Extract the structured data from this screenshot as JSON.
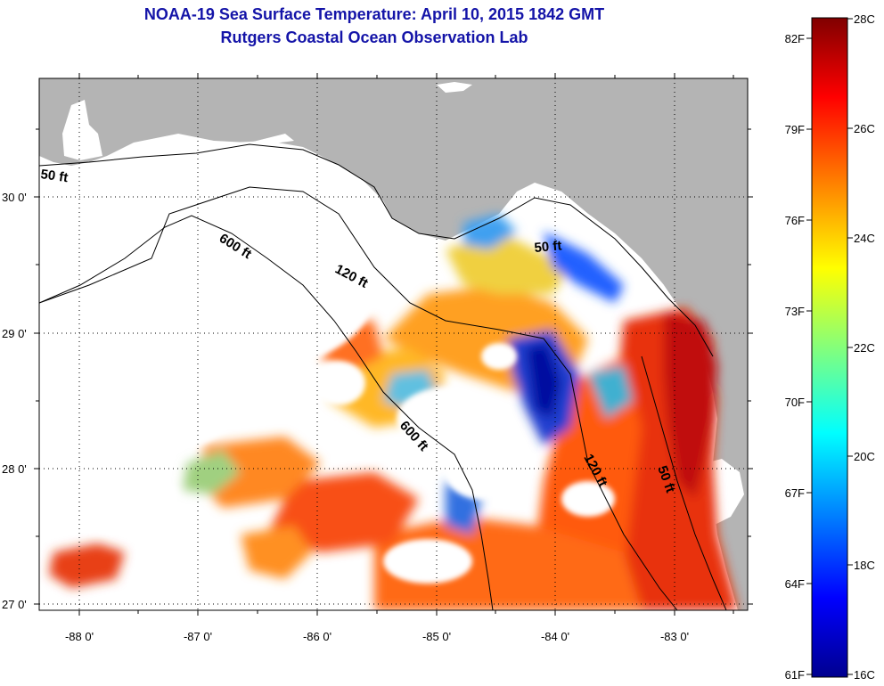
{
  "title": "NOAA-19 Sea Surface Temperature:  April 10, 2015 1842 GMT",
  "subtitle": "Rutgers Coastal Ocean Observation Lab",
  "map": {
    "x_ticks": [
      "-88 0'",
      "-87 0'",
      "-86 0'",
      "-85 0'",
      "-84 0'",
      "-83 0'"
    ],
    "y_ticks": [
      "30 0'",
      "29 0'",
      "28 0'",
      "27 0'"
    ],
    "contour_labels": [
      "50 ft",
      "600 ft",
      "120 ft",
      "50 ft",
      "600 ft",
      "120 ft",
      "50 ft"
    ],
    "land_color": "#b4b4b4",
    "no_data_color": "#ffffff"
  },
  "colorbar": {
    "celsius_labels": [
      "28C",
      "26C",
      "24C",
      "22C",
      "20C",
      "18C",
      "16C"
    ],
    "fahrenheit_labels": [
      "82F",
      "79F",
      "76F",
      "73F",
      "70F",
      "67F",
      "64F",
      "61F"
    ],
    "colors": [
      "#00008f",
      "#0000ff",
      "#00ffff",
      "#ffff00",
      "#ff8000",
      "#ff0000",
      "#800000"
    ]
  }
}
